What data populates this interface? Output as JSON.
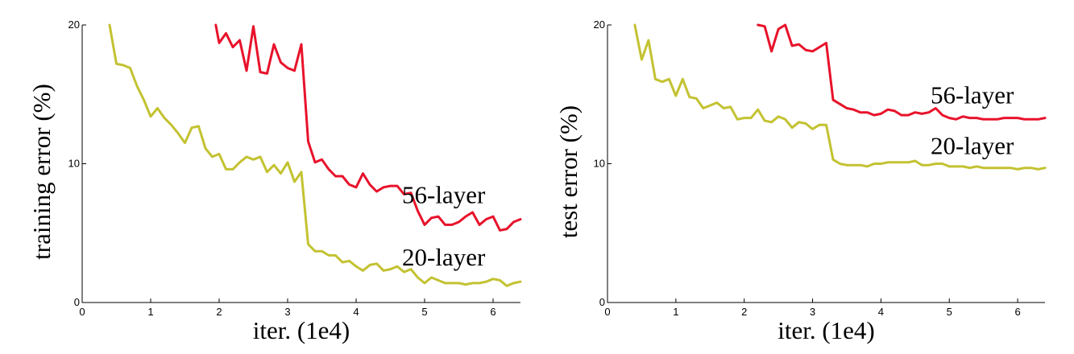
{
  "chart_data": [
    {
      "type": "line",
      "xlabel": "iter. (1e4)",
      "ylabel": "training error (%)",
      "xlim": [
        0,
        6.4
      ],
      "ylim": [
        0,
        20
      ],
      "xticks": [
        0,
        1,
        2,
        3,
        4,
        5,
        6
      ],
      "yticks": [
        0,
        10,
        20
      ],
      "grid": false,
      "legend": "inline labels at right end of each line",
      "series": [
        {
          "name": "56-layer",
          "color": "#e8122b",
          "x": [
            1.95,
            2.0,
            2.1,
            2.2,
            2.3,
            2.4,
            2.5,
            2.6,
            2.7,
            2.8,
            2.9,
            3.0,
            3.1,
            3.2,
            3.3,
            3.4,
            3.5,
            3.6,
            3.7,
            3.8,
            3.9,
            4.0,
            4.1,
            4.2,
            4.3,
            4.4,
            4.5,
            4.6,
            4.7,
            4.8,
            4.9,
            5.0,
            5.1,
            5.2,
            5.3,
            5.4,
            5.5,
            5.6,
            5.7,
            5.8,
            5.9,
            6.0,
            6.1,
            6.2,
            6.3,
            6.4
          ],
          "y": [
            20.0,
            18.7,
            19.4,
            18.4,
            18.9,
            16.7,
            19.9,
            16.6,
            16.5,
            18.6,
            17.3,
            16.9,
            16.7,
            18.6,
            11.6,
            10.1,
            10.3,
            9.6,
            9.1,
            9.1,
            8.5,
            8.3,
            9.3,
            8.5,
            8.0,
            8.3,
            8.4,
            8.4,
            7.8,
            7.9,
            6.6,
            5.6,
            6.1,
            6.2,
            5.6,
            5.6,
            5.8,
            6.2,
            6.5,
            5.6,
            6.0,
            6.2,
            5.2,
            5.3,
            5.8,
            6.0
          ]
        },
        {
          "name": "20-layer",
          "color": "#c3c232",
          "x": [
            0.4,
            0.5,
            0.6,
            0.7,
            0.8,
            0.9,
            1.0,
            1.1,
            1.2,
            1.3,
            1.4,
            1.5,
            1.6,
            1.7,
            1.8,
            1.9,
            2.0,
            2.1,
            2.2,
            2.3,
            2.4,
            2.5,
            2.6,
            2.7,
            2.8,
            2.9,
            3.0,
            3.1,
            3.2,
            3.3,
            3.4,
            3.5,
            3.6,
            3.7,
            3.8,
            3.9,
            4.0,
            4.1,
            4.2,
            4.3,
            4.4,
            4.5,
            4.6,
            4.7,
            4.8,
            4.9,
            5.0,
            5.1,
            5.2,
            5.3,
            5.4,
            5.5,
            5.6,
            5.7,
            5.8,
            5.9,
            6.0,
            6.1,
            6.2,
            6.3,
            6.4
          ],
          "y": [
            20.0,
            17.2,
            17.1,
            16.9,
            15.6,
            14.6,
            13.4,
            14.0,
            13.3,
            12.8,
            12.2,
            11.5,
            12.6,
            12.7,
            11.1,
            10.5,
            10.7,
            9.6,
            9.6,
            10.1,
            10.5,
            10.3,
            10.5,
            9.4,
            9.9,
            9.3,
            10.1,
            8.7,
            9.4,
            4.2,
            3.7,
            3.7,
            3.4,
            3.4,
            2.9,
            3.0,
            2.6,
            2.3,
            2.7,
            2.8,
            2.3,
            2.4,
            2.6,
            2.2,
            2.4,
            1.8,
            1.4,
            1.8,
            1.6,
            1.4,
            1.4,
            1.4,
            1.3,
            1.4,
            1.4,
            1.5,
            1.7,
            1.6,
            1.2,
            1.4,
            1.5
          ]
        }
      ]
    },
    {
      "type": "line",
      "xlabel": "iter. (1e4)",
      "ylabel": "test error (%)",
      "xlim": [
        0,
        6.4
      ],
      "ylim": [
        0,
        20
      ],
      "xticks": [
        0,
        1,
        2,
        3,
        4,
        5,
        6
      ],
      "yticks": [
        0,
        10,
        20
      ],
      "grid": false,
      "legend": "inline labels at right end of each line",
      "series": [
        {
          "name": "56-layer",
          "color": "#e8122b",
          "x": [
            2.2,
            2.3,
            2.4,
            2.5,
            2.6,
            2.7,
            2.8,
            2.9,
            3.0,
            3.1,
            3.2,
            3.3,
            3.4,
            3.5,
            3.6,
            3.7,
            3.8,
            3.9,
            4.0,
            4.1,
            4.2,
            4.3,
            4.4,
            4.5,
            4.6,
            4.7,
            4.8,
            4.9,
            5.0,
            5.1,
            5.2,
            5.3,
            5.4,
            5.5,
            5.6,
            5.7,
            5.8,
            5.9,
            6.0,
            6.1,
            6.2,
            6.3,
            6.4
          ],
          "y": [
            20.0,
            19.9,
            18.1,
            19.7,
            20.0,
            18.5,
            18.6,
            18.2,
            18.1,
            18.4,
            18.7,
            14.6,
            14.3,
            14.0,
            13.9,
            13.7,
            13.7,
            13.5,
            13.6,
            13.9,
            13.8,
            13.5,
            13.5,
            13.7,
            13.6,
            13.7,
            14.0,
            13.5,
            13.3,
            13.2,
            13.4,
            13.3,
            13.3,
            13.2,
            13.2,
            13.2,
            13.3,
            13.3,
            13.3,
            13.2,
            13.2,
            13.2,
            13.3
          ]
        },
        {
          "name": "20-layer",
          "color": "#c3c232",
          "x": [
            0.4,
            0.5,
            0.6,
            0.7,
            0.8,
            0.9,
            1.0,
            1.1,
            1.2,
            1.3,
            1.4,
            1.5,
            1.6,
            1.7,
            1.8,
            1.9,
            2.0,
            2.1,
            2.2,
            2.3,
            2.4,
            2.5,
            2.6,
            2.7,
            2.8,
            2.9,
            3.0,
            3.1,
            3.2,
            3.3,
            3.4,
            3.5,
            3.6,
            3.7,
            3.8,
            3.9,
            4.0,
            4.1,
            4.2,
            4.3,
            4.4,
            4.5,
            4.6,
            4.7,
            4.8,
            4.9,
            5.0,
            5.1,
            5.2,
            5.3,
            5.4,
            5.5,
            5.6,
            5.7,
            5.8,
            5.9,
            6.0,
            6.1,
            6.2,
            6.3,
            6.4
          ],
          "y": [
            20.0,
            17.5,
            18.9,
            16.1,
            15.9,
            16.1,
            14.9,
            16.1,
            14.8,
            14.7,
            14.0,
            14.2,
            14.4,
            14.0,
            14.1,
            13.2,
            13.3,
            13.3,
            13.9,
            13.1,
            13.0,
            13.4,
            13.2,
            12.6,
            13.0,
            12.9,
            12.5,
            12.8,
            12.8,
            10.3,
            10.0,
            9.9,
            9.9,
            9.9,
            9.8,
            10.0,
            10.0,
            10.1,
            10.1,
            10.1,
            10.1,
            10.2,
            9.9,
            9.9,
            10.0,
            10.0,
            9.8,
            9.8,
            9.8,
            9.7,
            9.8,
            9.7,
            9.7,
            9.7,
            9.7,
            9.7,
            9.6,
            9.7,
            9.7,
            9.6,
            9.7
          ]
        }
      ]
    }
  ]
}
